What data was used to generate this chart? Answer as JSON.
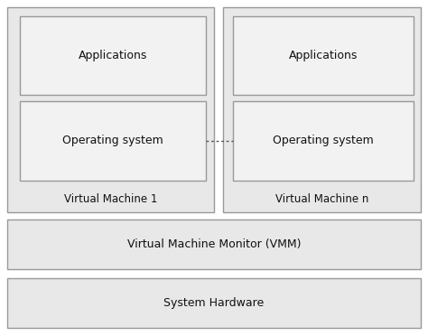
{
  "fig_width": 4.74,
  "fig_height": 3.72,
  "dpi": 100,
  "bg_color": "#ffffff",
  "box_fill": "#e8e8e8",
  "box_edge": "#999999",
  "inner_box_fill": "#f2f2f2",
  "inner_box_edge": "#999999",
  "vm1_label": "Virtual Machine 1",
  "vmn_label": "Virtual Machine n",
  "app_label": "Applications",
  "os_label": "Operating system",
  "vmm_label": "Virtual Machine Monitor (VMM)",
  "hw_label": "System Hardware",
  "font_size_inner": 9,
  "font_size_label": 8.5,
  "font_size_bar": 9
}
